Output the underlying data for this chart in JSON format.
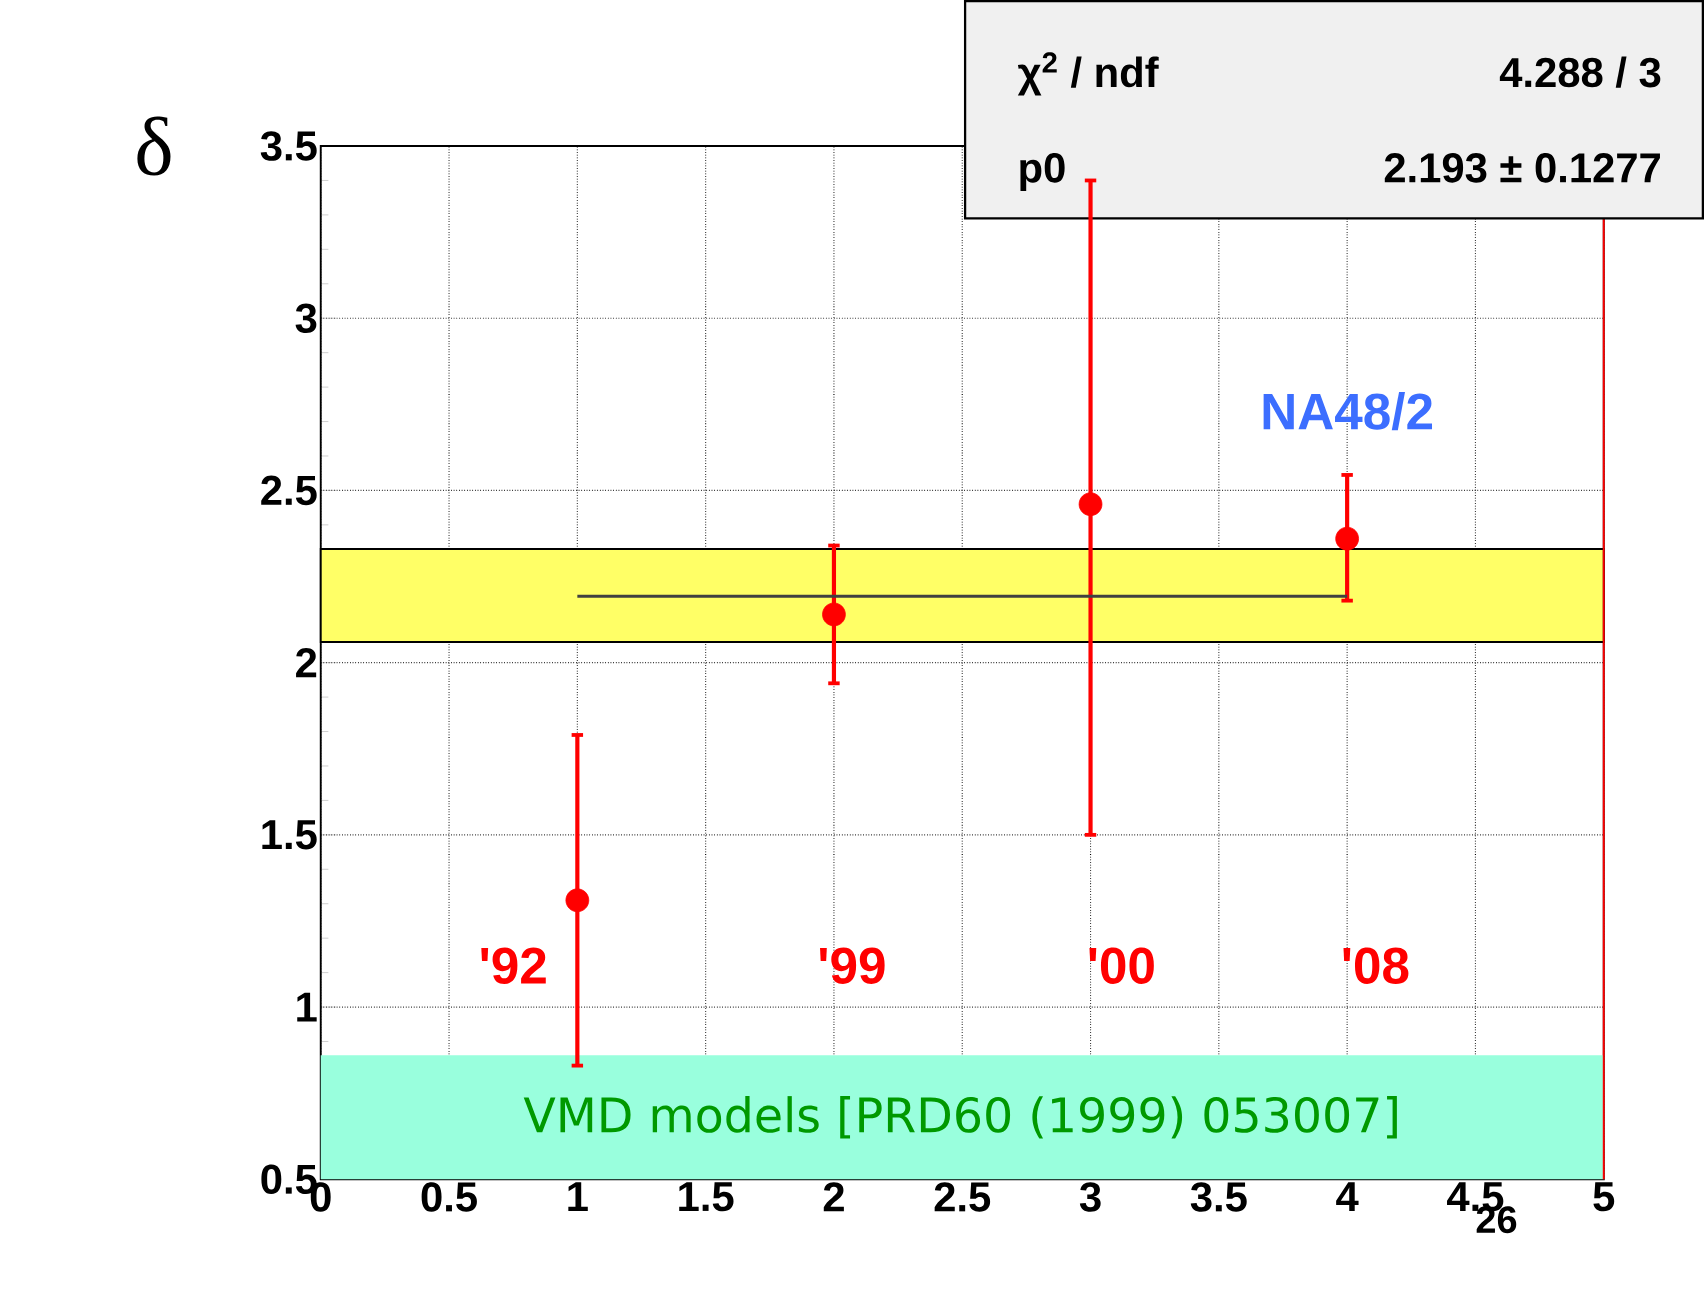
{
  "chart_data": {
    "type": "scatter",
    "ylabel": "δ",
    "xlim": [
      0,
      5
    ],
    "ylim": [
      0.5,
      3.5
    ],
    "xticks": [
      0,
      0.5,
      1,
      1.5,
      2,
      2.5,
      3,
      3.5,
      4,
      4.5,
      5
    ],
    "yticks": [
      0.5,
      1,
      1.5,
      2,
      2.5,
      3,
      3.5
    ],
    "grid": true,
    "series": [
      {
        "color": "#ff0000",
        "marker": "circle",
        "x": [
          1,
          2,
          3,
          4
        ],
        "values": [
          1.31,
          2.14,
          2.46,
          2.36
        ],
        "errors": [
          [
            0.83,
            1.79
          ],
          [
            1.94,
            2.34
          ],
          [
            1.5,
            3.4
          ],
          [
            2.18,
            2.545
          ]
        ]
      },
      {
        "type": "line",
        "marker": "none",
        "color": "#404040",
        "x": [
          1,
          4
        ],
        "values": [
          2.193,
          2.193
        ]
      }
    ],
    "bands": [
      {
        "axis": "y",
        "from": 2.06,
        "to": 2.33,
        "color": "#ffff66"
      },
      {
        "axis": "y",
        "from": 0.5,
        "to": 0.86,
        "color": "#99ffdd",
        "label": "VMD models [PRD60 (1999) 053007]"
      }
    ],
    "ref_lines": [
      {
        "axis": "x",
        "value": 5,
        "color": "#ff0000"
      }
    ],
    "annotations": [
      "'92",
      "'99",
      "'00",
      "'08",
      "NA48/2",
      "χ$^{2}$ / ndf",
      "4.288 / 3",
      "p0",
      "2.193 ± 0.1277",
      "26"
    ]
  }
}
